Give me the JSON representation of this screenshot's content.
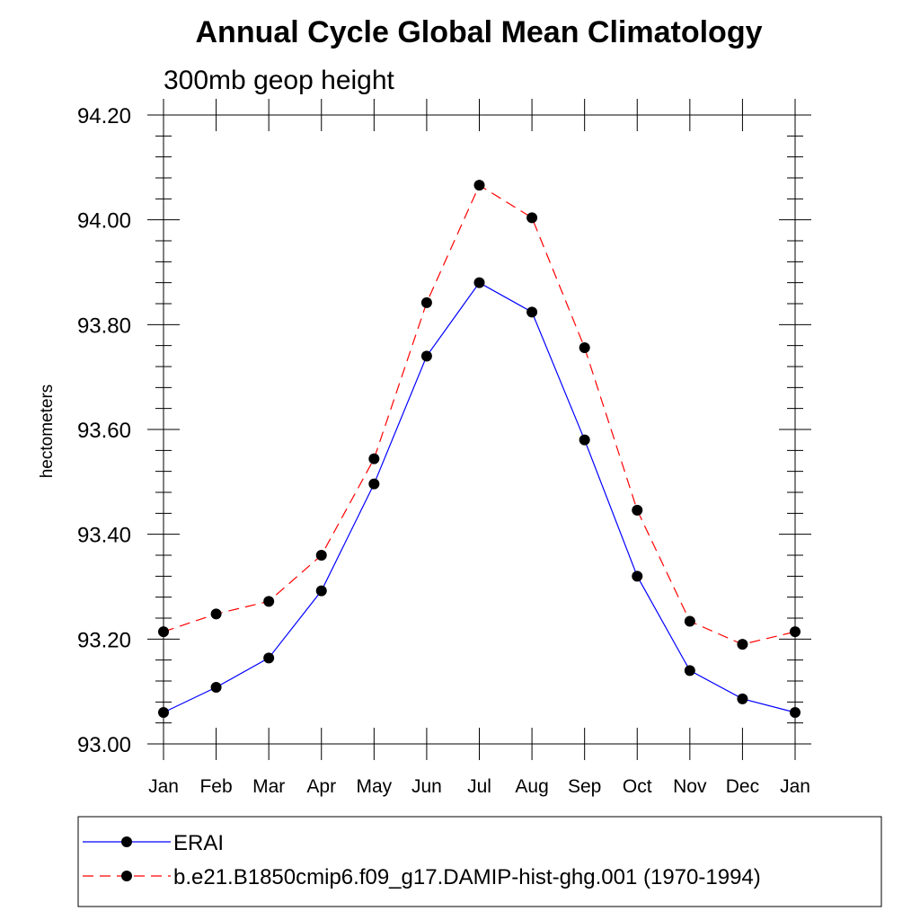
{
  "chart_data": {
    "type": "line",
    "title": "Annual Cycle Global Mean Climatology",
    "subtitle": "300mb geop height",
    "xlabel": "",
    "ylabel": "hectometers",
    "categories": [
      "Jan",
      "Feb",
      "Mar",
      "Apr",
      "May",
      "Jun",
      "Jul",
      "Aug",
      "Sep",
      "Oct",
      "Nov",
      "Dec",
      "Jan"
    ],
    "ylim": [
      93.0,
      94.2
    ],
    "yticks": [
      93.0,
      93.2,
      93.4,
      93.6,
      93.8,
      94.0,
      94.2
    ],
    "ytick_labels": [
      "93.00",
      "93.20",
      "93.40",
      "93.60",
      "93.80",
      "94.00",
      "94.20"
    ],
    "grid": false,
    "legend_position": "bottom",
    "series": [
      {
        "name": "ERAI",
        "color": "#0000ff",
        "line_style": "solid",
        "marker": "filled-circle",
        "values": [
          93.06,
          93.108,
          93.164,
          93.292,
          93.496,
          93.74,
          93.88,
          93.824,
          93.58,
          93.32,
          93.14,
          93.086,
          93.06
        ]
      },
      {
        "name": "b.e21.B1850cmip6.f09_g17.DAMIP-hist-ghg.001 (1970-1994)",
        "color": "#ff0000",
        "line_style": "dashed",
        "marker": "filled-circle",
        "values": [
          93.214,
          93.248,
          93.272,
          93.36,
          93.544,
          93.842,
          94.066,
          94.004,
          93.756,
          93.446,
          93.234,
          93.19,
          93.214
        ]
      }
    ]
  }
}
